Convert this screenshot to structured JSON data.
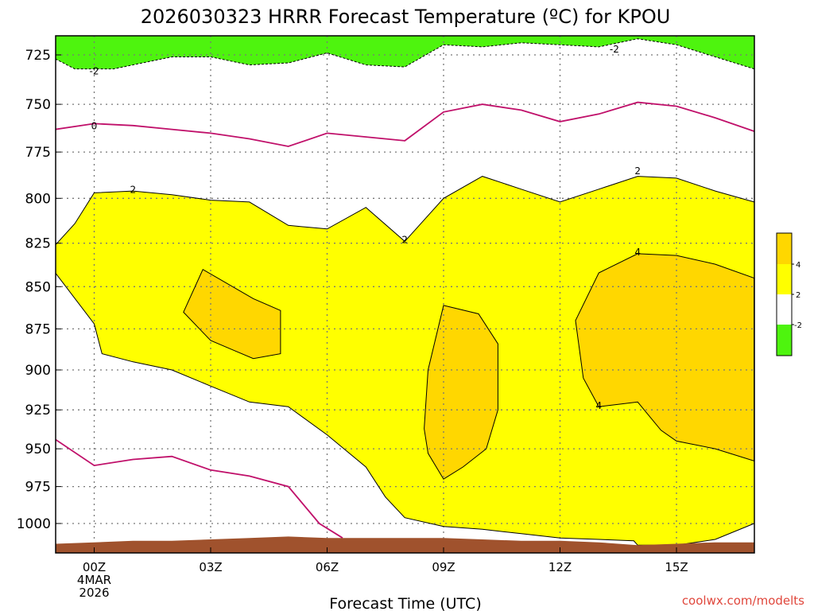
{
  "chart_data": {
    "type": "contour",
    "title": "2026030323 HRRR Forecast Temperature (ºC) for KPOU",
    "xlabel": "Forecast Time (UTC)",
    "ylabel": "",
    "credit": "coolwx.com/modelts",
    "x_range_hours": [
      -1,
      17
    ],
    "y_range_mb": [
      1017,
      715
    ],
    "y_scale": "log-pressure",
    "grid": true,
    "x_ticks": [
      {
        "hour": 0,
        "label": "00Z",
        "sub1": "4MAR",
        "sub2": "2026"
      },
      {
        "hour": 3,
        "label": "03Z"
      },
      {
        "hour": 6,
        "label": "06Z"
      },
      {
        "hour": 9,
        "label": "09Z"
      },
      {
        "hour": 12,
        "label": "12Z"
      },
      {
        "hour": 15,
        "label": "15Z"
      }
    ],
    "y_ticks": [
      725,
      750,
      775,
      800,
      825,
      850,
      875,
      900,
      925,
      950,
      975,
      1000
    ],
    "colors": {
      "below_-2": "#4ef40e",
      "-2_to_2": "#ffffff",
      "2_to_4": "#ffff00",
      "above_4": "#ffd700",
      "ground": "#a0522d",
      "zero_line": "#c0106a"
    },
    "colorbar_ticks": [
      "4",
      "2",
      "-2"
    ],
    "contour_labels": [
      {
        "text": "-2",
        "hour": 0.0,
        "p": 733
      },
      {
        "text": "-2",
        "hour": 13.4,
        "p": 722
      },
      {
        "text": "0",
        "hour": 0.0,
        "p": 761
      },
      {
        "text": "2",
        "hour": 1.0,
        "p": 795
      },
      {
        "text": "2",
        "hour": 8.0,
        "p": 823
      },
      {
        "text": "2",
        "hour": 14.0,
        "p": 785
      },
      {
        "text": "4",
        "hour": 14.0,
        "p": 830
      },
      {
        "text": "4",
        "hour": 13.0,
        "p": 922
      }
    ],
    "isotherm_minus2": [
      [
        -1,
        727
      ],
      [
        -0.5,
        732
      ],
      [
        0.5,
        732
      ],
      [
        2,
        726
      ],
      [
        3,
        726
      ],
      [
        4,
        730
      ],
      [
        5,
        729
      ],
      [
        6,
        724
      ],
      [
        7,
        730
      ],
      [
        8,
        731
      ],
      [
        9,
        720
      ],
      [
        10,
        721
      ],
      [
        11,
        719
      ],
      [
        12,
        720
      ],
      [
        13,
        721
      ],
      [
        14,
        717
      ],
      [
        15,
        720
      ],
      [
        16,
        726
      ],
      [
        17,
        732
      ]
    ],
    "isotherm_0": [
      [
        -1,
        763
      ],
      [
        0,
        760
      ],
      [
        1,
        761
      ],
      [
        2,
        763
      ],
      [
        3,
        765
      ],
      [
        4,
        768
      ],
      [
        5,
        772
      ],
      [
        6,
        765
      ],
      [
        7,
        767
      ],
      [
        8,
        769
      ],
      [
        9,
        754
      ],
      [
        10,
        750
      ],
      [
        11,
        753
      ],
      [
        12,
        759
      ],
      [
        13,
        755
      ],
      [
        14,
        749
      ],
      [
        15,
        751
      ],
      [
        16,
        757
      ],
      [
        17,
        764
      ]
    ],
    "isotherm_0_lower": [
      [
        -1,
        944
      ],
      [
        0,
        961
      ],
      [
        1,
        957
      ],
      [
        2,
        955
      ],
      [
        3,
        964
      ],
      [
        4,
        968
      ],
      [
        5,
        975
      ],
      [
        5.8,
        1000
      ],
      [
        6.4,
        1010
      ]
    ],
    "isotherm_2_top": [
      [
        -1,
        826
      ],
      [
        -0.5,
        814
      ],
      [
        0,
        797
      ],
      [
        1,
        796
      ],
      [
        2,
        798
      ],
      [
        3,
        801
      ],
      [
        4,
        802
      ],
      [
        5,
        815
      ],
      [
        6,
        817
      ],
      [
        7,
        805
      ],
      [
        8,
        824
      ],
      [
        9,
        800
      ],
      [
        10,
        788
      ],
      [
        11,
        795
      ],
      [
        12,
        802
      ],
      [
        13,
        795
      ],
      [
        14,
        788
      ],
      [
        15,
        789
      ],
      [
        16,
        796
      ],
      [
        17,
        802
      ]
    ],
    "isotherm_2_bottom": [
      [
        -1,
        842
      ],
      [
        0,
        872
      ],
      [
        0.2,
        890
      ],
      [
        1,
        895
      ],
      [
        2,
        900
      ],
      [
        3,
        910
      ],
      [
        4,
        920
      ],
      [
        5,
        923
      ],
      [
        6,
        941
      ],
      [
        7,
        962
      ],
      [
        7.5,
        982
      ],
      [
        8,
        996
      ],
      [
        9,
        1002
      ],
      [
        10,
        1004
      ],
      [
        11,
        1007
      ],
      [
        12,
        1010
      ],
      [
        13,
        1011
      ],
      [
        13.9,
        1012
      ],
      [
        14,
        1015
      ],
      [
        15,
        1015
      ],
      [
        16,
        1011
      ],
      [
        17,
        1000
      ]
    ],
    "isotherm_4_cells": [
      [
        [
          2.3,
          865
        ],
        [
          2.8,
          840
        ],
        [
          4.1,
          857
        ],
        [
          4.8,
          864
        ],
        [
          4.8,
          890
        ],
        [
          4.1,
          893
        ],
        [
          3.6,
          888
        ],
        [
          3,
          882
        ],
        [
          2.3,
          865
        ]
      ],
      [
        [
          9,
          861
        ],
        [
          9.9,
          866
        ],
        [
          10.4,
          884
        ],
        [
          10.4,
          925
        ],
        [
          10.1,
          950
        ],
        [
          9.5,
          962
        ],
        [
          9,
          970
        ],
        [
          8.6,
          953
        ],
        [
          8.5,
          937
        ],
        [
          8.6,
          900
        ],
        [
          9,
          861
        ]
      ],
      [
        [
          13,
          842
        ],
        [
          14,
          831
        ],
        [
          15,
          832
        ],
        [
          16,
          837
        ],
        [
          17,
          845
        ],
        [
          17,
          958
        ],
        [
          16,
          950
        ],
        [
          15,
          945
        ],
        [
          14.6,
          938
        ],
        [
          14,
          920
        ],
        [
          13,
          923
        ],
        [
          12.6,
          905
        ],
        [
          12.4,
          870
        ],
        [
          13,
          842
        ]
      ]
    ],
    "ground_surface": [
      [
        -1,
        1014
      ],
      [
        0,
        1013
      ],
      [
        1,
        1012
      ],
      [
        2,
        1012
      ],
      [
        3,
        1011
      ],
      [
        4,
        1010
      ],
      [
        5,
        1009
      ],
      [
        6,
        1010
      ],
      [
        7,
        1010
      ],
      [
        8,
        1010
      ],
      [
        9,
        1010
      ],
      [
        10,
        1011
      ],
      [
        11,
        1012
      ],
      [
        12,
        1012
      ],
      [
        13,
        1013
      ],
      [
        14,
        1015
      ],
      [
        15,
        1014
      ],
      [
        16,
        1013
      ],
      [
        17,
        1013
      ]
    ]
  }
}
